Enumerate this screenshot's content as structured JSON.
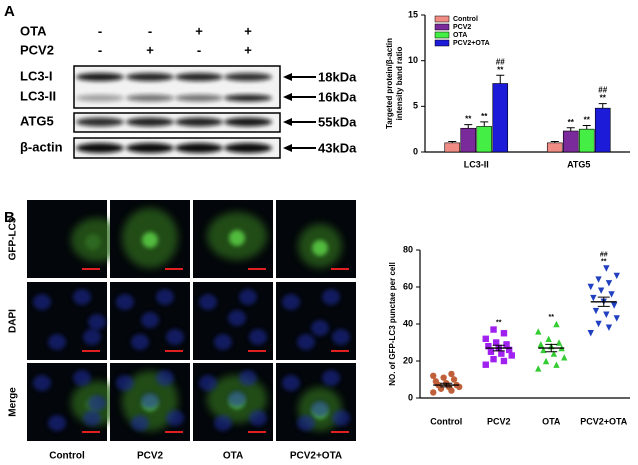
{
  "panel_labels": [
    "A",
    "B"
  ],
  "blot": {
    "treatments": [
      {
        "name": "OTA",
        "signs": [
          "-",
          "-",
          "+",
          "+"
        ]
      },
      {
        "name": "PCV2",
        "signs": [
          "-",
          "+",
          "-",
          "+"
        ]
      }
    ],
    "bands": [
      {
        "label": "LC3-I",
        "size": "18kDa"
      },
      {
        "label": "LC3-II",
        "size": "16kDa"
      },
      {
        "label": "ATG5",
        "size": "55kDa"
      },
      {
        "label": "β-actin",
        "size": "43kDa"
      }
    ]
  },
  "microscopy": {
    "rows": [
      "GFP-LC3",
      "DAPI",
      "Merge"
    ],
    "columns": [
      "Control",
      "PCV2",
      "OTA",
      "PCV2+OTA"
    ]
  },
  "chart_data": [
    {
      "type": "bar",
      "ylabel": [
        "Targeted protein/β-actin",
        "intensity band ratio"
      ],
      "categories": [
        "LC3-II",
        "ATG5"
      ],
      "ylim": [
        0,
        15
      ],
      "yticks": [
        0,
        5,
        10,
        15
      ],
      "legend": "upper left",
      "series": [
        {
          "name": "Control",
          "color": "#f08c84",
          "values": [
            1.0,
            1.0
          ],
          "errors": [
            0.15,
            0.15
          ]
        },
        {
          "name": "PCV2",
          "color": "#7a2a9a",
          "values": [
            2.6,
            2.3
          ],
          "errors": [
            0.4,
            0.35
          ],
          "labels": [
            [
              "**"
            ],
            [
              "**"
            ]
          ]
        },
        {
          "name": "OTA",
          "color": "#44ee44",
          "values": [
            2.8,
            2.5
          ],
          "errors": [
            0.5,
            0.4
          ],
          "labels": [
            [
              "**"
            ],
            [
              "**"
            ]
          ]
        },
        {
          "name": "PCV2+OTA",
          "color": "#1c1cd8",
          "values": [
            7.5,
            4.8
          ],
          "errors": [
            0.9,
            0.5
          ],
          "labels": [
            [
              "##",
              "**"
            ],
            [
              "##",
              "**"
            ]
          ]
        }
      ]
    },
    {
      "type": "strip",
      "ylabel": "NO. of GFP-LC3 punctae per cell",
      "categories": [
        "Control",
        "PCV2",
        "OTA",
        "PCV2+OTA"
      ],
      "ylim": [
        0,
        80
      ],
      "yticks": [
        0,
        20,
        40,
        60,
        80
      ],
      "series": [
        {
          "name": "Control",
          "color": "#c0603a",
          "marker": "circle",
          "values": [
            3,
            4,
            5,
            6,
            6,
            7,
            7,
            8,
            9,
            10,
            11,
            12,
            13
          ],
          "mean": 7,
          "sem": 1
        },
        {
          "name": "PCV2",
          "color": "#a020f0",
          "marker": "square",
          "values": [
            18,
            20,
            21,
            23,
            24,
            25,
            26,
            27,
            28,
            29,
            30,
            32,
            35,
            37
          ],
          "mean": 27,
          "sem": 1.5,
          "labels": [
            "**"
          ]
        },
        {
          "name": "OTA",
          "color": "#33cc33",
          "marker": "triangle",
          "values": [
            16,
            18,
            20,
            22,
            24,
            26,
            27,
            28,
            29,
            30,
            32,
            36,
            40
          ],
          "mean": 27,
          "sem": 2,
          "labels": [
            "**"
          ]
        },
        {
          "name": "PCV2+OTA",
          "color": "#2040c0",
          "marker": "triangle-down",
          "values": [
            35,
            38,
            40,
            43,
            45,
            47,
            50,
            52,
            54,
            56,
            58,
            60,
            62,
            64,
            66,
            70
          ],
          "mean": 52,
          "sem": 2.5,
          "labels": [
            "##",
            "**"
          ]
        }
      ]
    }
  ]
}
